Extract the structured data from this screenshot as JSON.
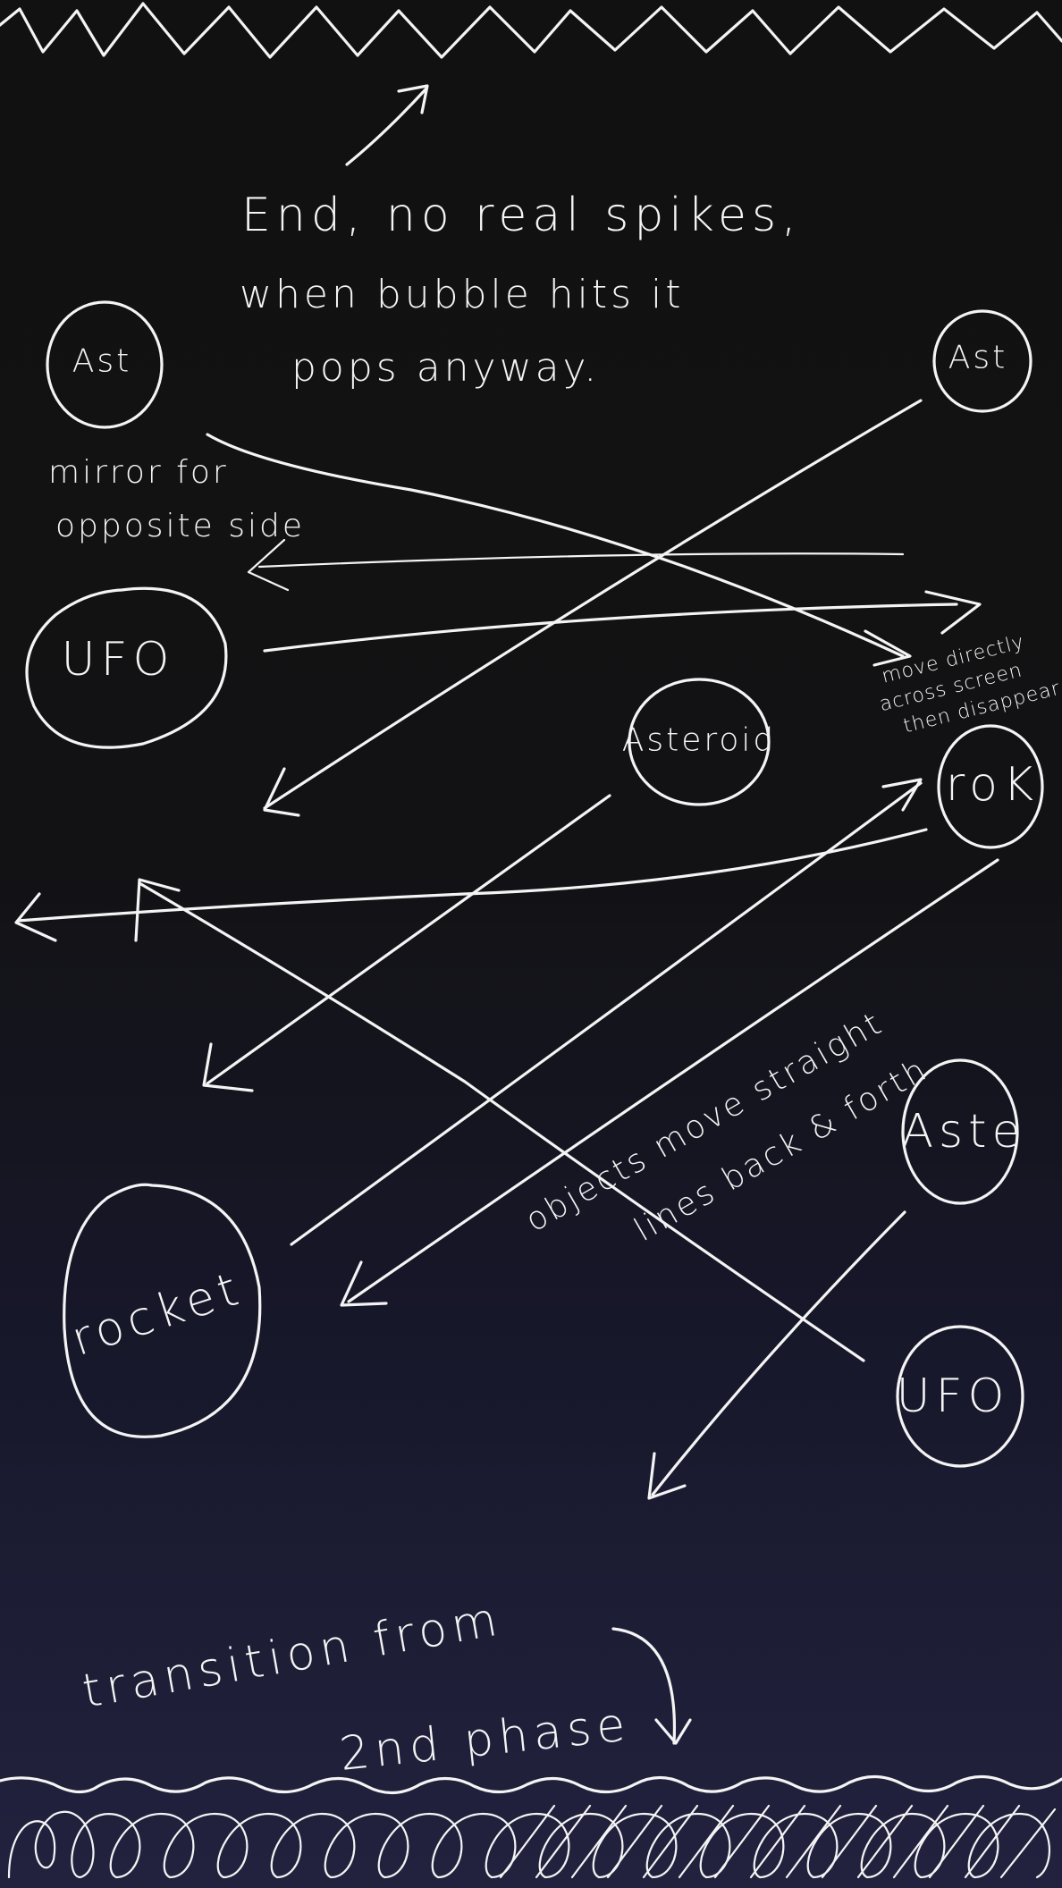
{
  "notes": {
    "end_line1": "End, no real spikes,",
    "end_line2": "when bubble hits it",
    "end_line3": "pops anyway.",
    "mirror_line1": "mirror for",
    "mirror_line2": "opposite side",
    "move_line1": "move directly",
    "move_line2": "across screen",
    "move_line3": "then disappear",
    "objects_line1": "objects move straight",
    "objects_line2": "lines back & forth",
    "transition_line1": "transition from",
    "transition_line2": "2nd phase"
  },
  "objects": {
    "ast_left": "Ast",
    "ast_right": "Ast",
    "ufo_left": "UFO",
    "asteroid_center": "Asteroid",
    "rok_right": "roK",
    "ast_lower_right": "Aste",
    "rocket": "rocket",
    "ufo_lower_right": "UFO"
  },
  "colors": {
    "ink": "#f4f4f4",
    "background_top": "#111111",
    "background_bottom": "#22223f"
  }
}
